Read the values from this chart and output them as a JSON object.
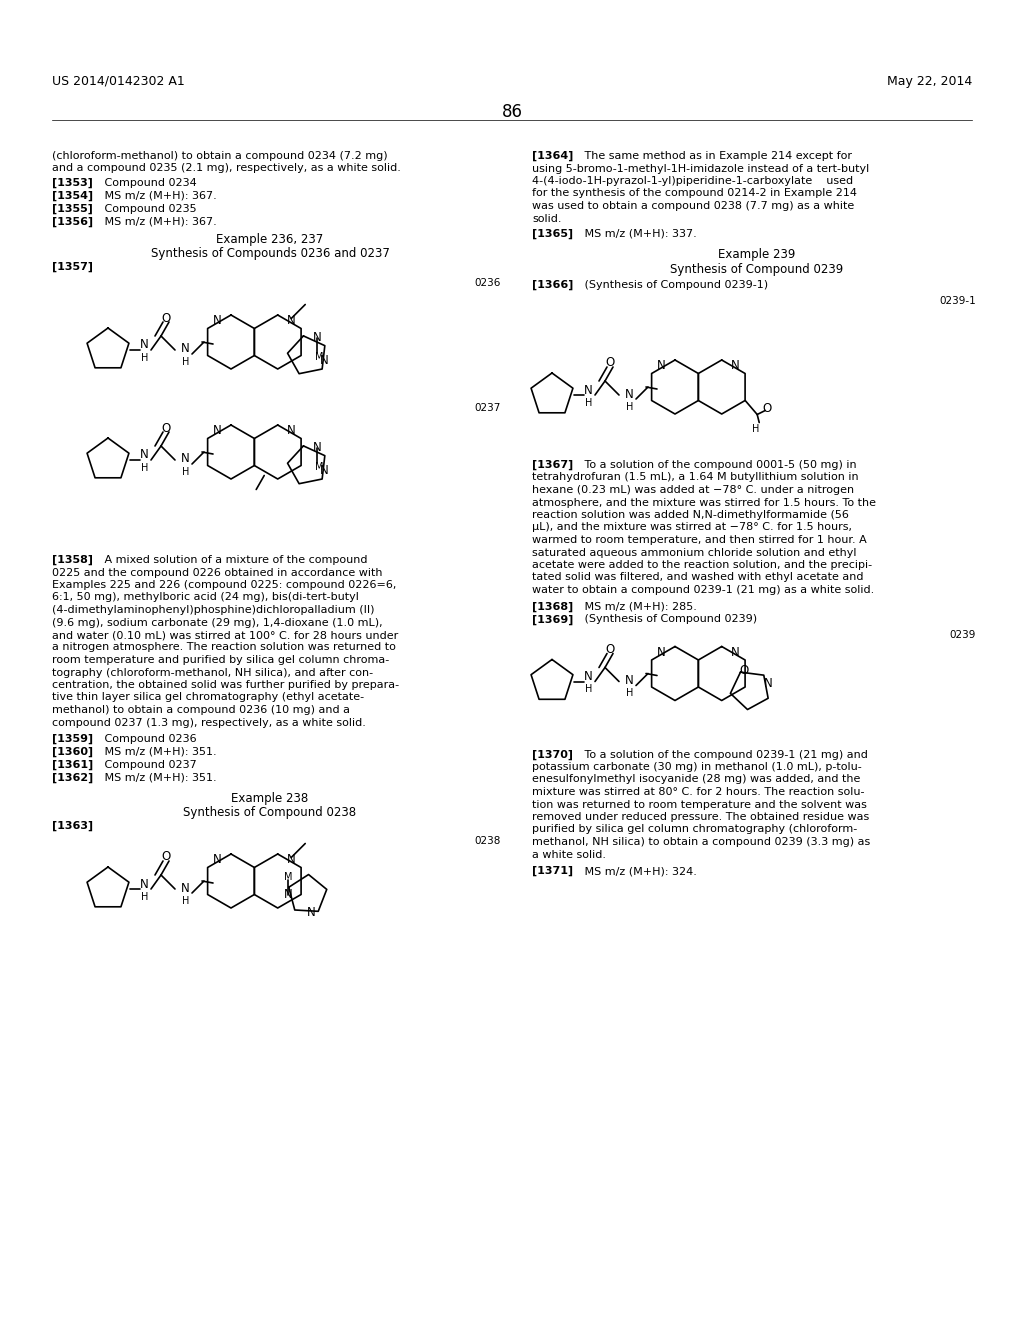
{
  "background_color": "#ffffff",
  "header_left": "US 2014/0142302 A1",
  "header_right": "May 22, 2014",
  "page_number": "86"
}
